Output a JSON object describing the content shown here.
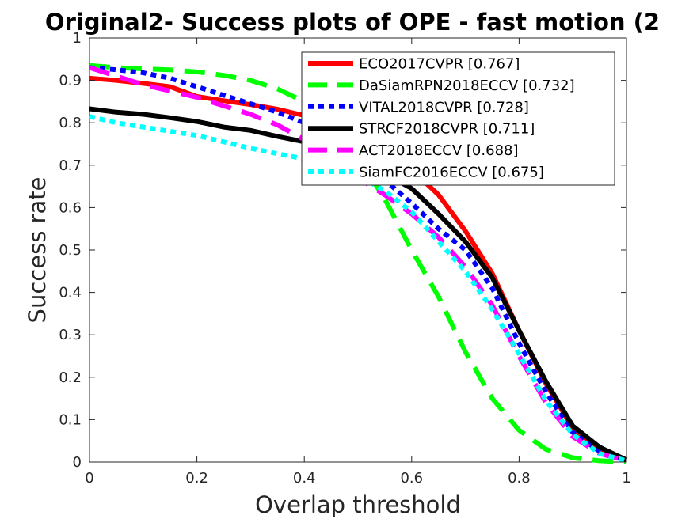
{
  "chart_data": {
    "type": "line",
    "title": "Original2- Success plots of OPE - fast motion (2",
    "xlabel": "Overlap threshold",
    "ylabel": "Success rate",
    "xlim": [
      0,
      1
    ],
    "ylim": [
      0,
      1
    ],
    "xticks": [
      "0",
      "0.2",
      "0.4",
      "0.6",
      "0.8",
      "1"
    ],
    "yticks": [
      "0",
      "0.1",
      "0.2",
      "0.3",
      "0.4",
      "0.5",
      "0.6",
      "0.7",
      "0.8",
      "0.9",
      "1"
    ],
    "grid": false,
    "legend_position": "top-right",
    "x": [
      0,
      0.05,
      0.1,
      0.15,
      0.2,
      0.25,
      0.3,
      0.35,
      0.4,
      0.45,
      0.5,
      0.55,
      0.6,
      0.65,
      0.7,
      0.75,
      0.8,
      0.85,
      0.9,
      0.95,
      1
    ],
    "series": [
      {
        "name": "ECO2017CVPR [0.767]",
        "color": "#ff0000",
        "style": "solid",
        "values": [
          0.905,
          0.9,
          0.893,
          0.885,
          0.862,
          0.852,
          0.843,
          0.832,
          0.817,
          0.793,
          0.75,
          0.72,
          0.69,
          0.63,
          0.545,
          0.445,
          0.31,
          0.185,
          0.08,
          0.03,
          0.005
        ]
      },
      {
        "name": "DaSiamRPN2018ECCV [0.732]",
        "color": "#00ff00",
        "style": "dashed",
        "values": [
          0.935,
          0.93,
          0.927,
          0.925,
          0.92,
          0.912,
          0.9,
          0.88,
          0.85,
          0.8,
          0.72,
          0.62,
          0.5,
          0.39,
          0.26,
          0.15,
          0.075,
          0.03,
          0.01,
          0.003,
          0.0
        ]
      },
      {
        "name": "VITAL2018CVPR [0.728]",
        "color": "#0000ff",
        "style": "dotted",
        "values": [
          0.93,
          0.925,
          0.918,
          0.905,
          0.885,
          0.865,
          0.845,
          0.825,
          0.8,
          0.76,
          0.71,
          0.665,
          0.61,
          0.55,
          0.5,
          0.41,
          0.28,
          0.165,
          0.07,
          0.025,
          0.005
        ]
      },
      {
        "name": "STRCF2018CVPR [0.711]",
        "color": "#000000",
        "style": "solid",
        "values": [
          0.833,
          0.825,
          0.82,
          0.812,
          0.803,
          0.79,
          0.782,
          0.768,
          0.755,
          0.735,
          0.7,
          0.68,
          0.645,
          0.585,
          0.52,
          0.435,
          0.31,
          0.19,
          0.085,
          0.035,
          0.005
        ]
      },
      {
        "name": "ACT2018ECCV [0.688]",
        "color": "#ff00ff",
        "style": "dashed",
        "values": [
          0.93,
          0.91,
          0.89,
          0.875,
          0.86,
          0.84,
          0.82,
          0.795,
          0.76,
          0.72,
          0.67,
          0.63,
          0.585,
          0.53,
          0.46,
          0.37,
          0.25,
          0.14,
          0.06,
          0.02,
          0.003
        ]
      },
      {
        "name": "SiamFC2016ECCV [0.675]",
        "color": "#00ffff",
        "style": "dotted",
        "values": [
          0.815,
          0.8,
          0.79,
          0.78,
          0.77,
          0.755,
          0.74,
          0.727,
          0.715,
          0.7,
          0.675,
          0.64,
          0.59,
          0.52,
          0.45,
          0.36,
          0.255,
          0.145,
          0.065,
          0.02,
          0.003
        ]
      }
    ]
  }
}
